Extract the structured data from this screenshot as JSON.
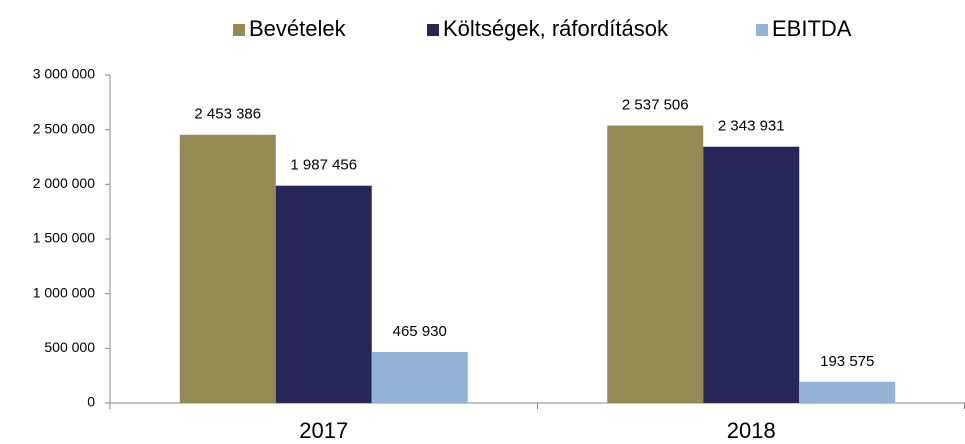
{
  "chart_data": {
    "type": "bar",
    "categories": [
      "2017",
      "2018"
    ],
    "series": [
      {
        "name": "Bevételek",
        "color": "#948a54",
        "values": [
          2453386,
          2537506
        ],
        "value_labels": [
          "2 453 386",
          "2 537 506"
        ]
      },
      {
        "name": "Költségek, ráfordítások",
        "color": "#262659",
        "values": [
          1987456,
          2343931
        ],
        "value_labels": [
          "1 987 456",
          "2 343 931"
        ]
      },
      {
        "name": "EBITDA",
        "color": "#95b3d7",
        "values": [
          465930,
          193575
        ],
        "value_labels": [
          "465 930",
          "193 575"
        ]
      }
    ],
    "ylim": [
      0,
      3000000
    ],
    "yticks": [
      0,
      {
        "value": 500000,
        "label": "500 000"
      },
      {
        "value": 1000000,
        "label": "1 000 000"
      },
      {
        "value": 1500000,
        "label": "1 500 000"
      },
      {
        "value": 2000000,
        "label": "2 000 000"
      },
      {
        "value": 2500000,
        "label": "2 500 000"
      },
      {
        "value": 3000000,
        "label": "3 000 000"
      }
    ],
    "grid": false,
    "legend": "top"
  }
}
